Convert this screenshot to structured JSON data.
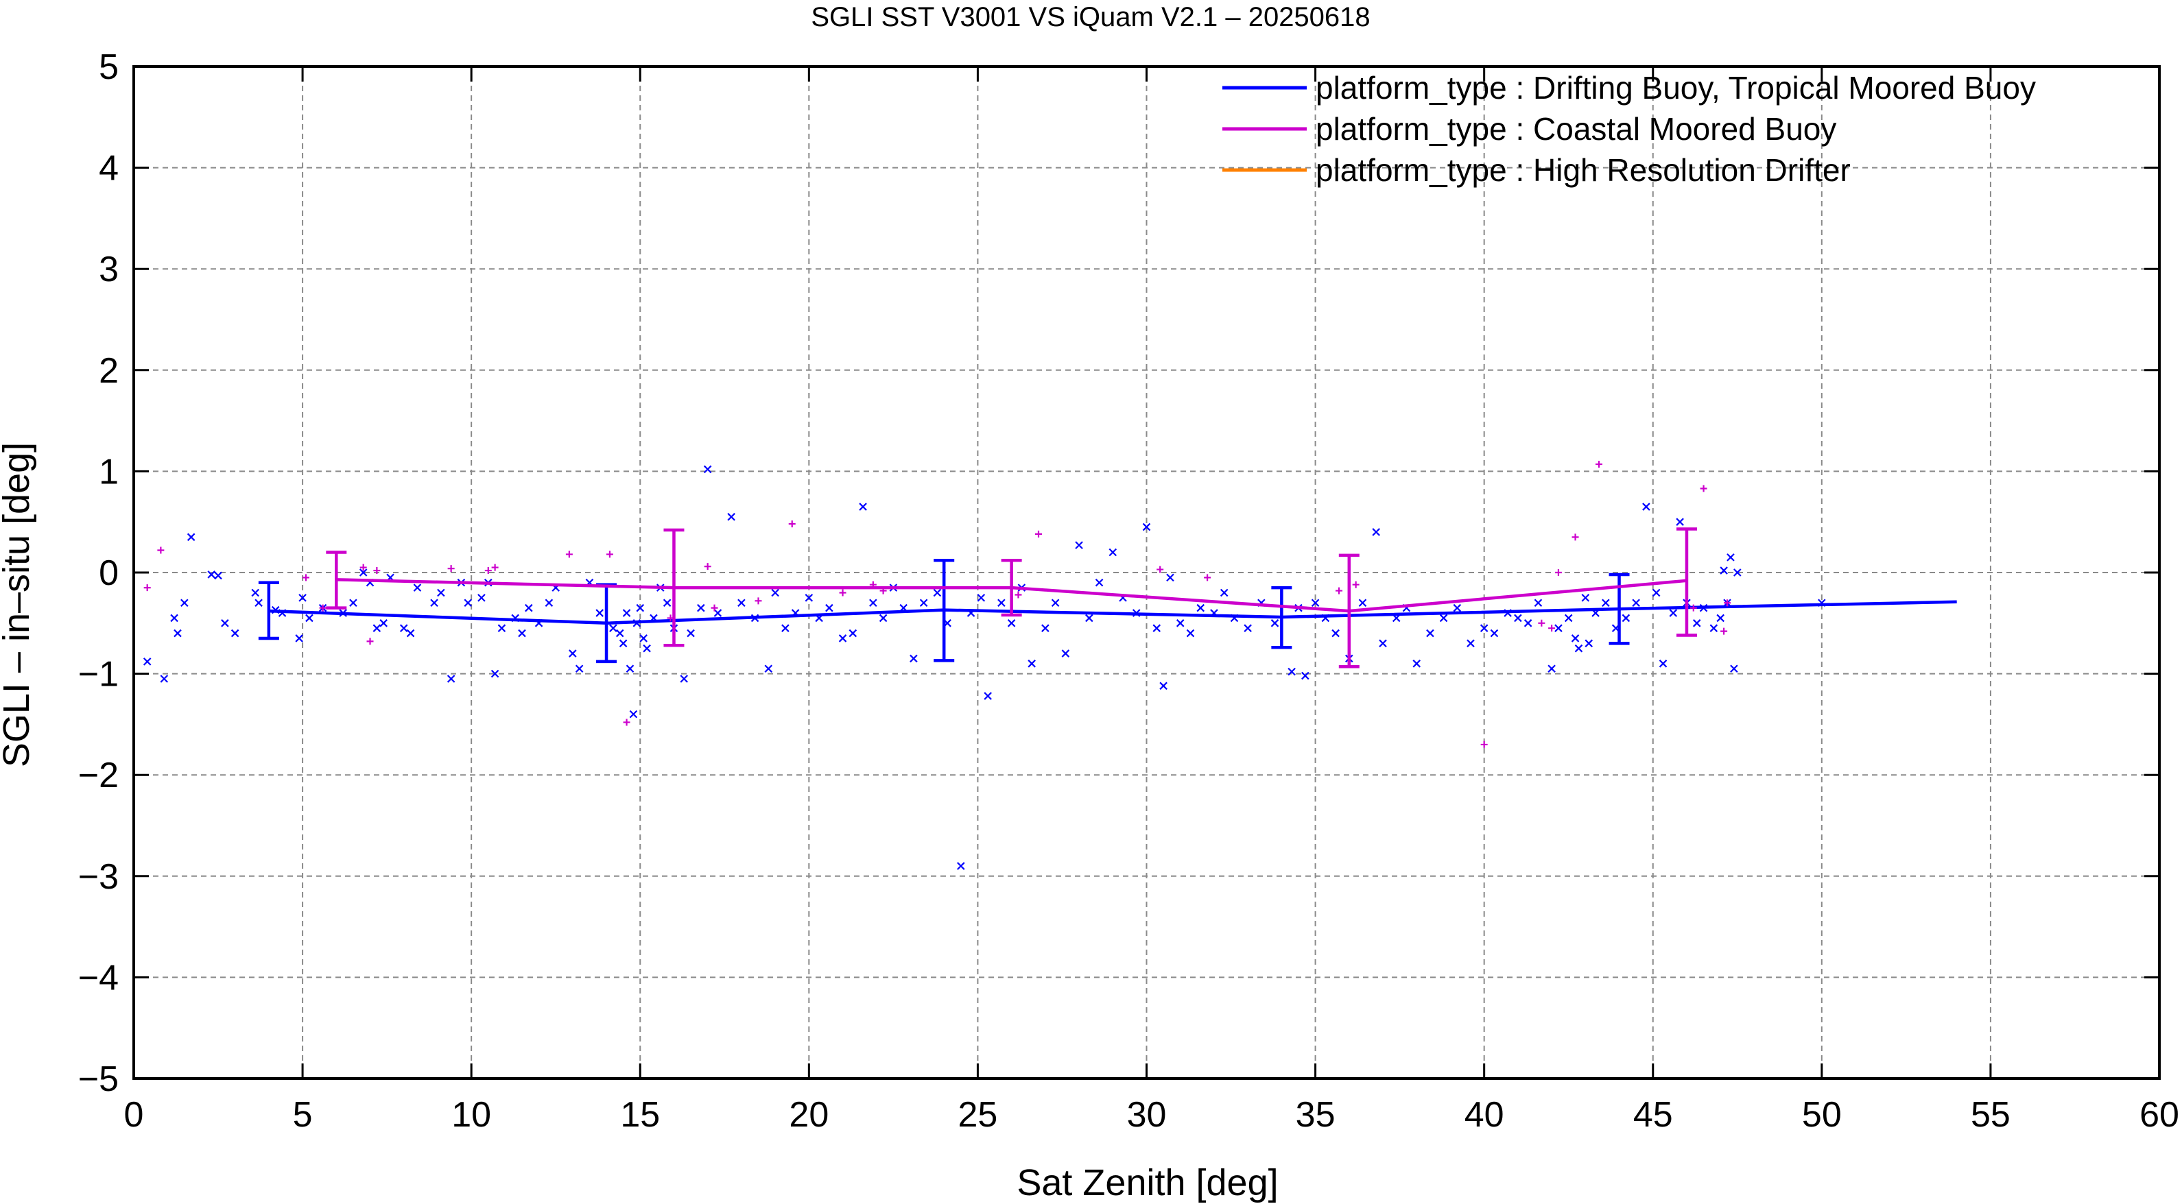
{
  "chart_data": {
    "type": "scatter",
    "title": "SGLI SST V3001 VS iQuam V2.1  – 20250618",
    "xlabel": "Sat Zenith [deg]",
    "ylabel": "SGLI – in–situ [deg]",
    "xlim": [
      0,
      60
    ],
    "ylim": [
      -5,
      5
    ],
    "x_ticks": [
      "0",
      "5",
      "10",
      "15",
      "20",
      "25",
      "30",
      "35",
      "40",
      "45",
      "50",
      "55",
      "60"
    ],
    "y_ticks": [
      "−5",
      "−4",
      "−3",
      "−2",
      "−1",
      "0",
      "1",
      "2",
      "3",
      "4",
      "5"
    ],
    "grid": true,
    "legend_position": "top-right",
    "series": [
      {
        "name": "platform_type : Drifting Buoy, Tropical Moored Buoy",
        "color": "#0000ff",
        "marker": "x",
        "mean_line": {
          "x": [
            4,
            14,
            24,
            34,
            44,
            54
          ],
          "y": [
            -0.38,
            -0.5,
            -0.37,
            -0.44,
            -0.36,
            -0.29
          ]
        },
        "error_bars": [
          {
            "x": 4,
            "low": -0.65,
            "high": -0.1
          },
          {
            "x": 14,
            "low": -0.88,
            "high": -0.12
          },
          {
            "x": 24,
            "low": -0.87,
            "high": 0.12
          },
          {
            "x": 34,
            "low": -0.74,
            "high": -0.15
          },
          {
            "x": 44,
            "low": -0.7,
            "high": -0.02
          }
        ],
        "points": [
          [
            0.4,
            -0.88
          ],
          [
            0.9,
            -1.05
          ],
          [
            1.2,
            -0.45
          ],
          [
            1.3,
            -0.6
          ],
          [
            1.5,
            -0.3
          ],
          [
            1.7,
            0.35
          ],
          [
            2.3,
            -0.02
          ],
          [
            2.5,
            -0.03
          ],
          [
            2.7,
            -0.5
          ],
          [
            3.0,
            -0.6
          ],
          [
            3.6,
            -0.2
          ],
          [
            3.7,
            -0.3
          ],
          [
            4.2,
            -0.37
          ],
          [
            4.4,
            -0.4
          ],
          [
            4.9,
            -0.65
          ],
          [
            5.0,
            -0.25
          ],
          [
            5.2,
            -0.45
          ],
          [
            5.6,
            -0.35
          ],
          [
            6.2,
            -0.4
          ],
          [
            6.5,
            -0.3
          ],
          [
            6.8,
            0.0
          ],
          [
            7.0,
            -0.1
          ],
          [
            7.2,
            -0.55
          ],
          [
            7.4,
            -0.5
          ],
          [
            7.6,
            -0.05
          ],
          [
            8.0,
            -0.55
          ],
          [
            8.2,
            -0.6
          ],
          [
            8.4,
            -0.15
          ],
          [
            8.9,
            -0.3
          ],
          [
            9.1,
            -0.2
          ],
          [
            9.4,
            -1.05
          ],
          [
            9.7,
            -0.1
          ],
          [
            9.9,
            -0.3
          ],
          [
            10.3,
            -0.25
          ],
          [
            10.5,
            -0.1
          ],
          [
            10.7,
            -1.0
          ],
          [
            10.9,
            -0.55
          ],
          [
            11.3,
            -0.45
          ],
          [
            11.5,
            -0.6
          ],
          [
            11.7,
            -0.35
          ],
          [
            12.0,
            -0.5
          ],
          [
            12.3,
            -0.3
          ],
          [
            12.5,
            -0.15
          ],
          [
            13.0,
            -0.8
          ],
          [
            13.2,
            -0.95
          ],
          [
            13.5,
            -0.1
          ],
          [
            13.8,
            -0.4
          ],
          [
            14.2,
            -0.55
          ],
          [
            14.4,
            -0.6
          ],
          [
            14.5,
            -0.7
          ],
          [
            14.6,
            -0.4
          ],
          [
            14.7,
            -0.95
          ],
          [
            14.8,
            -1.4
          ],
          [
            14.9,
            -0.5
          ],
          [
            15.0,
            -0.35
          ],
          [
            15.1,
            -0.65
          ],
          [
            15.2,
            -0.75
          ],
          [
            15.4,
            -0.45
          ],
          [
            15.6,
            -0.15
          ],
          [
            15.8,
            -0.3
          ],
          [
            16.0,
            -0.55
          ],
          [
            16.3,
            -1.05
          ],
          [
            16.5,
            -0.6
          ],
          [
            16.8,
            -0.35
          ],
          [
            17.0,
            1.02
          ],
          [
            17.3,
            -0.4
          ],
          [
            17.7,
            0.55
          ],
          [
            18.0,
            -0.3
          ],
          [
            18.4,
            -0.45
          ],
          [
            18.8,
            -0.95
          ],
          [
            19.0,
            -0.2
          ],
          [
            19.3,
            -0.55
          ],
          [
            19.6,
            -0.4
          ],
          [
            20.0,
            -0.25
          ],
          [
            20.3,
            -0.45
          ],
          [
            20.6,
            -0.35
          ],
          [
            21.0,
            -0.65
          ],
          [
            21.3,
            -0.6
          ],
          [
            21.6,
            0.65
          ],
          [
            21.9,
            -0.3
          ],
          [
            22.2,
            -0.45
          ],
          [
            22.5,
            -0.15
          ],
          [
            22.8,
            -0.35
          ],
          [
            23.1,
            -0.85
          ],
          [
            23.4,
            -0.3
          ],
          [
            23.8,
            -0.2
          ],
          [
            24.1,
            -0.5
          ],
          [
            24.5,
            -2.9
          ],
          [
            24.8,
            -0.4
          ],
          [
            25.1,
            -0.25
          ],
          [
            25.3,
            -1.22
          ],
          [
            25.7,
            -0.3
          ],
          [
            26.0,
            -0.5
          ],
          [
            26.3,
            -0.15
          ],
          [
            26.6,
            -0.9
          ],
          [
            27.0,
            -0.55
          ],
          [
            27.3,
            -0.3
          ],
          [
            27.6,
            -0.8
          ],
          [
            28.0,
            0.27
          ],
          [
            28.3,
            -0.45
          ],
          [
            28.6,
            -0.1
          ],
          [
            29.0,
            0.2
          ],
          [
            29.3,
            -0.25
          ],
          [
            29.7,
            -0.4
          ],
          [
            30.0,
            0.45
          ],
          [
            30.3,
            -0.55
          ],
          [
            30.5,
            -1.12
          ],
          [
            30.7,
            -0.05
          ],
          [
            31.0,
            -0.5
          ],
          [
            31.3,
            -0.6
          ],
          [
            31.6,
            -0.35
          ],
          [
            32.0,
            -0.4
          ],
          [
            32.3,
            -0.2
          ],
          [
            32.6,
            -0.45
          ],
          [
            33.0,
            -0.55
          ],
          [
            33.4,
            -0.3
          ],
          [
            33.8,
            -0.5
          ],
          [
            34.3,
            -0.98
          ],
          [
            34.5,
            -0.35
          ],
          [
            34.7,
            -1.02
          ],
          [
            35.0,
            -0.3
          ],
          [
            35.3,
            -0.45
          ],
          [
            35.6,
            -0.6
          ],
          [
            36.0,
            -0.85
          ],
          [
            36.4,
            -0.3
          ],
          [
            36.8,
            0.4
          ],
          [
            37.0,
            -0.7
          ],
          [
            37.4,
            -0.45
          ],
          [
            37.7,
            -0.35
          ],
          [
            38.0,
            -0.9
          ],
          [
            38.4,
            -0.6
          ],
          [
            38.8,
            -0.45
          ],
          [
            39.2,
            -0.35
          ],
          [
            39.6,
            -0.7
          ],
          [
            40.0,
            -0.55
          ],
          [
            40.3,
            -0.6
          ],
          [
            40.7,
            -0.4
          ],
          [
            41.0,
            -0.45
          ],
          [
            41.3,
            -0.5
          ],
          [
            41.6,
            -0.3
          ],
          [
            42.0,
            -0.95
          ],
          [
            42.2,
            -0.55
          ],
          [
            42.5,
            -0.45
          ],
          [
            42.7,
            -0.65
          ],
          [
            42.8,
            -0.75
          ],
          [
            43.0,
            -0.25
          ],
          [
            43.1,
            -0.7
          ],
          [
            43.3,
            -0.4
          ],
          [
            43.6,
            -0.3
          ],
          [
            43.9,
            -0.55
          ],
          [
            44.2,
            -0.45
          ],
          [
            44.5,
            -0.3
          ],
          [
            44.8,
            0.65
          ],
          [
            45.1,
            -0.2
          ],
          [
            45.3,
            -0.9
          ],
          [
            45.6,
            -0.4
          ],
          [
            45.8,
            0.5
          ],
          [
            46.0,
            -0.3
          ],
          [
            46.3,
            -0.5
          ],
          [
            46.5,
            -0.35
          ],
          [
            46.8,
            -0.55
          ],
          [
            47.0,
            -0.45
          ],
          [
            47.1,
            0.02
          ],
          [
            47.2,
            -0.3
          ],
          [
            47.3,
            0.15
          ],
          [
            47.4,
            -0.95
          ],
          [
            47.5,
            0.0
          ],
          [
            50.0,
            -0.3
          ]
        ]
      },
      {
        "name": "platform_type : Coastal Moored Buoy",
        "color": "#cc00cc",
        "marker": "+",
        "mean_line": {
          "x": [
            6,
            16,
            26,
            36,
            46
          ],
          "y": [
            -0.07,
            -0.15,
            -0.15,
            -0.38,
            -0.08
          ]
        },
        "error_bars": [
          {
            "x": 6,
            "low": -0.35,
            "high": 0.2
          },
          {
            "x": 16,
            "low": -0.72,
            "high": 0.42
          },
          {
            "x": 26,
            "low": -0.42,
            "high": 0.12
          },
          {
            "x": 36,
            "low": -0.93,
            "high": 0.17
          },
          {
            "x": 46,
            "low": -0.62,
            "high": 0.43
          }
        ],
        "points": [
          [
            0.4,
            -0.15
          ],
          [
            0.8,
            0.22
          ],
          [
            5.1,
            -0.05
          ],
          [
            5.6,
            -0.35
          ],
          [
            6.8,
            0.05
          ],
          [
            7.0,
            -0.68
          ],
          [
            7.2,
            0.02
          ],
          [
            9.4,
            0.04
          ],
          [
            10.5,
            0.02
          ],
          [
            10.7,
            0.05
          ],
          [
            12.9,
            0.18
          ],
          [
            14.1,
            0.18
          ],
          [
            14.6,
            -1.48
          ],
          [
            15.9,
            -0.45
          ],
          [
            17.0,
            0.06
          ],
          [
            17.2,
            -0.35
          ],
          [
            18.5,
            -0.28
          ],
          [
            19.5,
            0.48
          ],
          [
            21.0,
            -0.2
          ],
          [
            21.9,
            -0.12
          ],
          [
            22.2,
            -0.18
          ],
          [
            26.2,
            -0.22
          ],
          [
            26.8,
            0.38
          ],
          [
            30.4,
            0.03
          ],
          [
            31.8,
            -0.05
          ],
          [
            35.7,
            -0.18
          ],
          [
            36.2,
            -0.12
          ],
          [
            40.0,
            -1.7
          ],
          [
            41.7,
            -0.5
          ],
          [
            42.0,
            -0.55
          ],
          [
            42.2,
            0.0
          ],
          [
            42.7,
            0.35
          ],
          [
            43.4,
            1.07
          ],
          [
            46.2,
            -0.35
          ],
          [
            46.5,
            0.83
          ],
          [
            47.1,
            -0.58
          ],
          [
            47.2,
            -0.3
          ]
        ]
      },
      {
        "name": "platform_type : High Resolution Drifter",
        "color": "#ff8000",
        "marker": "x",
        "points": []
      }
    ]
  }
}
